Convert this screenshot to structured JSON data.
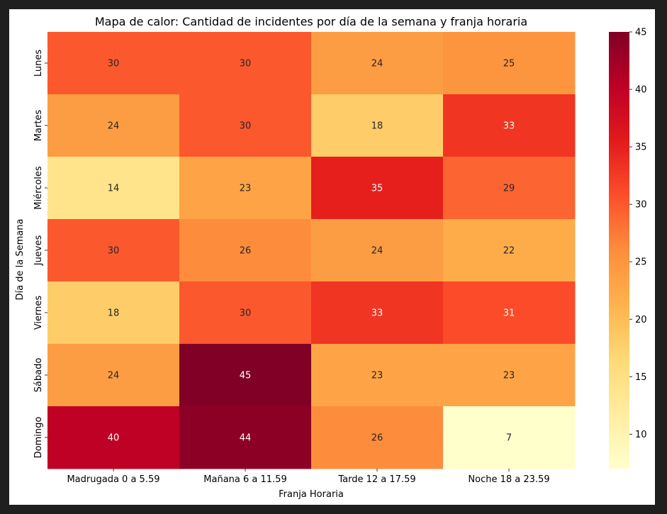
{
  "chart_data": {
    "type": "heatmap",
    "title": "Mapa de calor: Cantidad de incidentes por día de la semana y franja horaria",
    "xlabel": "Franja Horaria",
    "ylabel": "Día de la Semana",
    "x_categories": [
      "Madrugada 0 a 5.59",
      "Mañana 6 a 11.59",
      "Tarde 12 a 17.59",
      "Noche 18 a 23.59"
    ],
    "y_categories": [
      "Lunes",
      "Martes",
      "Miércoles",
      "Jueves",
      "Viernes",
      "Sábado",
      "Domingo"
    ],
    "values": [
      [
        30,
        30,
        24,
        25
      ],
      [
        24,
        30,
        18,
        33
      ],
      [
        14,
        23,
        35,
        29
      ],
      [
        30,
        26,
        24,
        22
      ],
      [
        18,
        30,
        33,
        31
      ],
      [
        24,
        45,
        23,
        23
      ],
      [
        40,
        44,
        26,
        7
      ]
    ],
    "colormap": "YlOrRd",
    "vmin": 7,
    "vmax": 45,
    "colorbar_ticks": [
      10,
      15,
      20,
      25,
      30,
      35,
      40,
      45
    ],
    "annotations": true
  }
}
